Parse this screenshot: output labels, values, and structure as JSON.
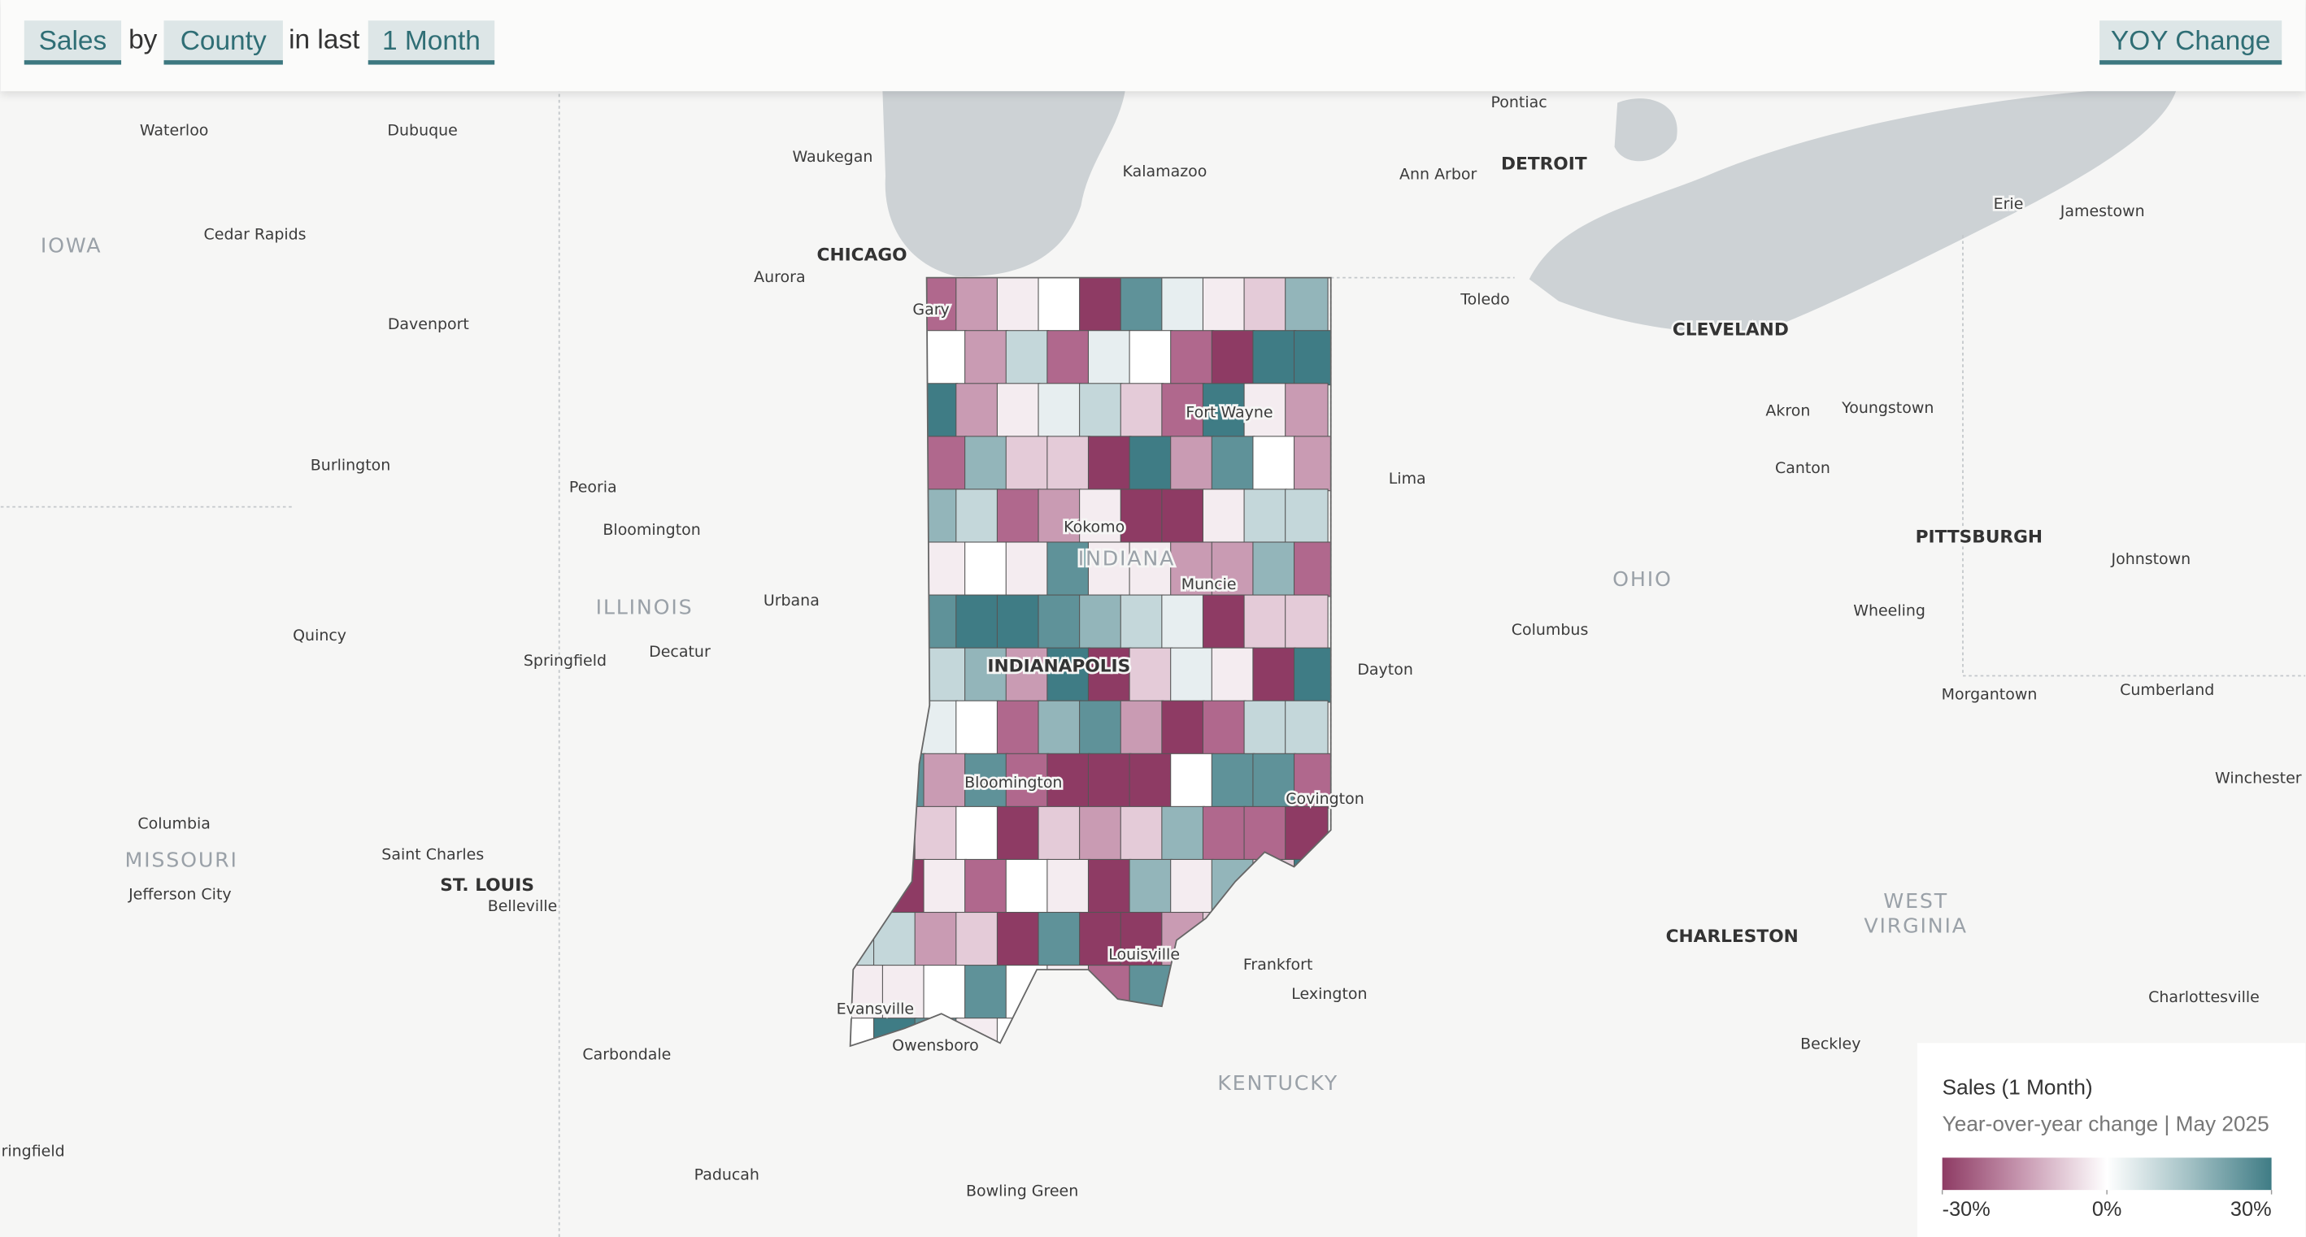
{
  "header": {
    "metric": "Sales",
    "by": "by",
    "level": "County",
    "in_last": "in last",
    "period": "1 Month",
    "mode": "YOY Change"
  },
  "map": {
    "cities": [
      "Waterloo",
      "Dubuque",
      "Waukegan",
      "Kalamazoo",
      "Pontiac",
      "Ann Arbor",
      "DETROIT",
      "Erie",
      "Jamestown",
      "Cedar Rapids",
      "CHICAGO",
      "Aurora",
      "Gary",
      "Toledo",
      "CLEVELAND",
      "Davenport",
      "Fort Wayne",
      "Akron",
      "Youngstown",
      "Burlington",
      "Canton",
      "Lima",
      "Peoria",
      "Bloomington",
      "Kokomo",
      "PITTSBURGH",
      "Johnstown",
      "Muncie",
      "Urbana",
      "Wheeling",
      "Quincy",
      "Columbus",
      "Decatur",
      "Springfield",
      "INDIANAPOLIS",
      "Dayton",
      "Cumberland",
      "Morgantown",
      "Winchester",
      "Bloomington",
      "Covington",
      "Columbia",
      "Saint Charles",
      "ST. LOUIS",
      "Jefferson City",
      "Belleville",
      "CHARLESTON",
      "Frankfort",
      "Louisville",
      "Lexington",
      "Charlottesville",
      "Evansville",
      "Owensboro",
      "Carbondale",
      "Beckley",
      "Paducah",
      "Bowling Green",
      "ringfield"
    ],
    "states": [
      [
        "IOWA"
      ],
      [
        "ILLINOIS"
      ],
      [
        "INDIANA"
      ],
      [
        "OHIO"
      ],
      [
        "MISSOURI"
      ],
      [
        "KENTUCKY"
      ],
      [
        "WEST",
        "VIRGINIA"
      ]
    ]
  },
  "legend": {
    "title": "Sales (1 Month)",
    "subtitle": "Year-over-year change | May 2025",
    "lim": [
      -30,
      30
    ],
    "ticks": [
      {
        "value": -30,
        "label": "-30%"
      },
      {
        "value": 0,
        "label": "0%"
      },
      {
        "value": 30,
        "label": "30%"
      }
    ]
  }
}
